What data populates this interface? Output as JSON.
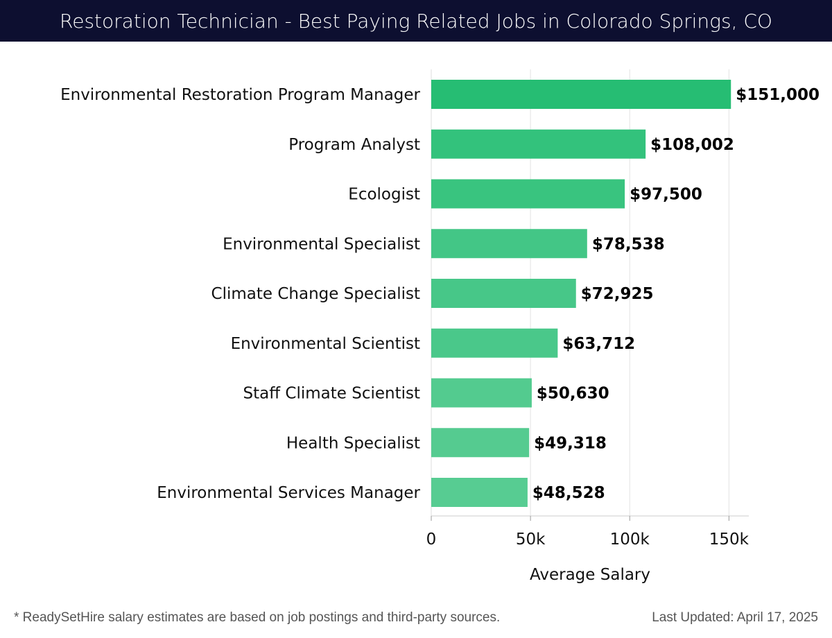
{
  "chart_data": {
    "type": "bar",
    "orientation": "horizontal",
    "title": "Restoration Technician - Best Paying Related Jobs in Colorado Springs, CO",
    "xlabel": "Average Salary",
    "ylabel": "",
    "xlim": [
      0,
      160000
    ],
    "grid": true,
    "categories": [
      "Environmental Restoration Program Manager",
      "Program Analyst",
      "Ecologist",
      "Environmental Specialist",
      "Climate Change Specialist",
      "Environmental Scientist",
      "Staff Climate Scientist",
      "Health Specialist",
      "Environmental Services Manager"
    ],
    "values": [
      151000,
      108002,
      97500,
      78538,
      72925,
      63712,
      50630,
      49318,
      48528
    ],
    "value_labels": [
      "$151,000",
      "$108,002",
      "$97,500",
      "$78,538",
      "$72,925",
      "$63,712",
      "$50,630",
      "$49,318",
      "$48,528"
    ],
    "ticks": [
      {
        "value": 0,
        "label": "0"
      },
      {
        "value": 50000,
        "label": "50k"
      },
      {
        "value": 100000,
        "label": "100k"
      },
      {
        "value": 150000,
        "label": "150k"
      }
    ],
    "bar_colors": [
      "#26bd73",
      "#33c27c",
      "#39c47f",
      "#43c686",
      "#47c788",
      "#4ac88a",
      "#53cb8f",
      "#55cb90",
      "#57cc92"
    ]
  },
  "footer": {
    "note": "* ReadySetHire salary estimates are based on job postings and third-party sources.",
    "updated": "Last Updated: April 17, 2025"
  }
}
